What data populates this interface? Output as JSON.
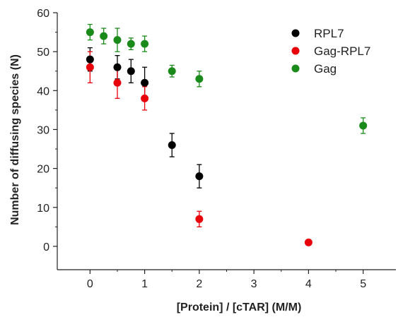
{
  "chart_data": {
    "type": "scatter",
    "title": "",
    "xlabel": "[Protein] / [cTAR] (M/M)",
    "ylabel": "Number of diffusing species (N)",
    "xlim": [
      -0.6,
      5.6
    ],
    "ylim": [
      -6,
      60
    ],
    "x_ticks": [
      "0",
      "1",
      "2",
      "3",
      "4",
      "5"
    ],
    "y_ticks": [
      "0",
      "10",
      "20",
      "30",
      "40",
      "50",
      "60"
    ],
    "legend_position": "top-right",
    "grid": false,
    "error_bars": true,
    "series": [
      {
        "name": "RPL7",
        "color": "#000000",
        "points": [
          {
            "x": 0,
            "y": 48,
            "err": 3
          },
          {
            "x": 0.5,
            "y": 46,
            "err": 3
          },
          {
            "x": 0.75,
            "y": 45,
            "err": 3
          },
          {
            "x": 1,
            "y": 42,
            "err": 4
          },
          {
            "x": 1.5,
            "y": 26,
            "err": 3
          },
          {
            "x": 2,
            "y": 18,
            "err": 3
          }
        ]
      },
      {
        "name": "Gag-RPL7",
        "color": "#e8000b",
        "points": [
          {
            "x": 0,
            "y": 46,
            "err": 4
          },
          {
            "x": 0.5,
            "y": 42,
            "err": 4
          },
          {
            "x": 1,
            "y": 38,
            "err": 3
          },
          {
            "x": 2,
            "y": 7,
            "err": 2
          },
          {
            "x": 4,
            "y": 1,
            "err": 0.5
          }
        ]
      },
      {
        "name": "Gag",
        "color": "#1a8a1a",
        "points": [
          {
            "x": 0,
            "y": 55,
            "err": 2
          },
          {
            "x": 0.25,
            "y": 54,
            "err": 2
          },
          {
            "x": 0.5,
            "y": 53,
            "err": 3
          },
          {
            "x": 0.75,
            "y": 52,
            "err": 1.5
          },
          {
            "x": 1,
            "y": 52,
            "err": 2
          },
          {
            "x": 1.5,
            "y": 45,
            "err": 1.5
          },
          {
            "x": 2,
            "y": 43,
            "err": 2
          },
          {
            "x": 5,
            "y": 31,
            "err": 2
          }
        ]
      }
    ]
  }
}
